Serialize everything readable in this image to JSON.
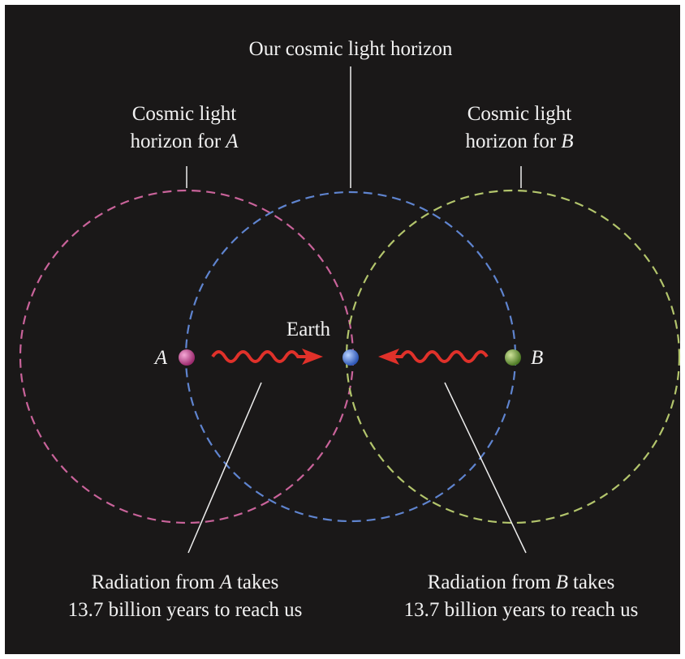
{
  "our_horizon": {
    "label": "Our cosmic light horizon"
  },
  "horizon_a": {
    "line1": "Cosmic light",
    "line2": "horizon for",
    "point": "A"
  },
  "horizon_b": {
    "line1": "Cosmic light",
    "line2": "horizon for",
    "point": "B"
  },
  "earth": {
    "label": "Earth"
  },
  "point_a": {
    "label": "A"
  },
  "point_b": {
    "label": "B"
  },
  "radiation_a": {
    "before": "Radiation from",
    "point": "A",
    "after": "takes",
    "line2": "13.7 billion years to reach us"
  },
  "radiation_b": {
    "before": "Radiation from",
    "point": "B",
    "after": "takes",
    "line2": "13.7 billion years to reach us"
  }
}
